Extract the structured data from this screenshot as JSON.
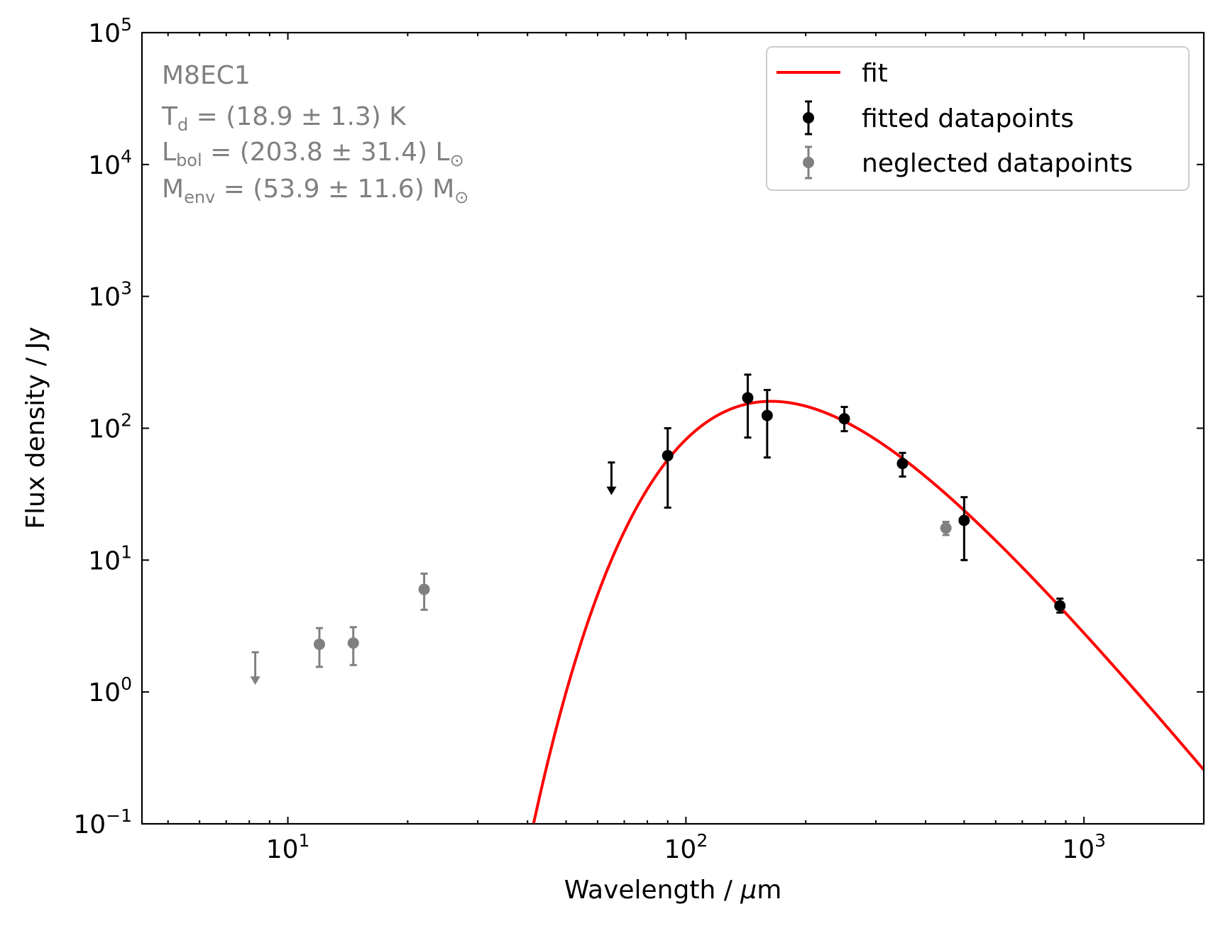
{
  "chart_data": {
    "type": "scatter",
    "xlabel_prefix": "Wavelength / ",
    "xlabel_unit_symbol": "μ",
    "xlabel_unit_rest": "m",
    "ylabel": "Flux density / Jy",
    "x_scale": "log",
    "y_scale": "log",
    "xlim": [
      4.3,
      2000
    ],
    "ylim": [
      0.1,
      100000
    ],
    "x_ticks": [
      {
        "value": 10,
        "base": "10",
        "exp": "1"
      },
      {
        "value": 100,
        "base": "10",
        "exp": "2"
      },
      {
        "value": 1000,
        "base": "10",
        "exp": "3"
      }
    ],
    "y_ticks": [
      {
        "value": 0.1,
        "base": "10",
        "exp": "−1"
      },
      {
        "value": 1,
        "base": "10",
        "exp": "0"
      },
      {
        "value": 10,
        "base": "10",
        "exp": "1"
      },
      {
        "value": 100,
        "base": "10",
        "exp": "2"
      },
      {
        "value": 1000,
        "base": "10",
        "exp": "3"
      },
      {
        "value": 10000,
        "base": "10",
        "exp": "4"
      },
      {
        "value": 100000,
        "base": "10",
        "exp": "5"
      }
    ],
    "annotation": {
      "name": "M8EC1",
      "td": {
        "sym": "T",
        "sub": "d",
        "text": " = (18.9 ± 1.3) K"
      },
      "lbol": {
        "sym": "L",
        "sub": "bol",
        "text": " = (203.8 ± 31.4) L",
        "sun": "⊙"
      },
      "menv": {
        "sym": "M",
        "sub": "env",
        "text": " = (53.9 ± 11.6) M",
        "sun": "⊙"
      }
    },
    "legend": {
      "placement": "top-right",
      "fit_label": "fit",
      "fitted_label": "fitted datapoints",
      "neglected_label": "neglected datapoints"
    },
    "fit": {
      "model": "modified blackbody",
      "peak_wavelength": 165,
      "peak_flux": 160,
      "beta": 1.75,
      "color": "#ff0000"
    },
    "fitted_points": [
      {
        "x": 90,
        "y": 62,
        "ylo": 25,
        "yhi": 100
      },
      {
        "x": 143,
        "y": 170,
        "ylo": 85,
        "yhi": 255
      },
      {
        "x": 160,
        "y": 125,
        "ylo": 60,
        "yhi": 195
      },
      {
        "x": 250,
        "y": 118,
        "ylo": 95,
        "yhi": 145
      },
      {
        "x": 350,
        "y": 54,
        "ylo": 43,
        "yhi": 65
      },
      {
        "x": 500,
        "y": 20,
        "ylo": 10,
        "yhi": 30
      },
      {
        "x": 870,
        "y": 4.5,
        "ylo": 4.0,
        "yhi": 5.1
      }
    ],
    "fitted_upper_limits": [
      {
        "x": 65,
        "y": 55
      }
    ],
    "neglected_points": [
      {
        "x": 12,
        "y": 2.3,
        "ylo": 1.55,
        "yhi": 3.05
      },
      {
        "x": 14.6,
        "y": 2.35,
        "ylo": 1.6,
        "yhi": 3.1
      },
      {
        "x": 22,
        "y": 6.0,
        "ylo": 4.2,
        "yhi": 7.9
      },
      {
        "x": 450,
        "y": 17.5,
        "ylo": 15.5,
        "yhi": 19.5
      }
    ],
    "neglected_upper_limits": [
      {
        "x": 8.28,
        "y": 2.0
      }
    ],
    "colors": {
      "fitted": "#000000",
      "neglected": "#808080",
      "fit": "#ff0000"
    }
  }
}
